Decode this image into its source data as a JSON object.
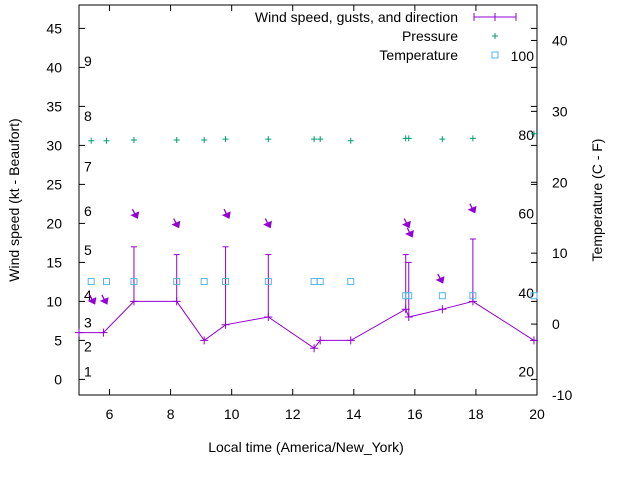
{
  "chart_data": {
    "type": "line",
    "title": "",
    "xlabel": "Local time (America/New_York)",
    "ylabel": "Wind speed (kt - Beaufort)",
    "y2label": "Temperature (C - F)",
    "xlim": [
      5,
      20
    ],
    "ylim": [
      -2,
      48
    ],
    "y2lim": [
      -10,
      45
    ],
    "x_ticks": [
      6,
      8,
      10,
      12,
      14,
      16,
      18,
      20
    ],
    "y_ticks": [
      0,
      5,
      10,
      15,
      20,
      25,
      30,
      35,
      40,
      45
    ],
    "y2_ticks": [
      -10,
      0,
      10,
      20,
      30,
      40
    ],
    "fahrenheit_labels": [
      {
        "c": -6.7,
        "label": "20"
      },
      {
        "c": 4.4,
        "label": "40"
      },
      {
        "c": 15.6,
        "label": "60"
      },
      {
        "c": 26.7,
        "label": "80"
      },
      {
        "c": 37.8,
        "label": "100"
      }
    ],
    "beaufort_labels": [
      {
        "kt": 1,
        "label": "1"
      },
      {
        "kt": 4.2,
        "label": "2"
      },
      {
        "kt": 7.3,
        "label": "3"
      },
      {
        "kt": 10.8,
        "label": "4"
      },
      {
        "kt": 16.6,
        "label": "5"
      },
      {
        "kt": 21.6,
        "label": "6"
      },
      {
        "kt": 27.3,
        "label": "7"
      },
      {
        "kt": 33.8,
        "label": "8"
      },
      {
        "kt": 40.8,
        "label": "9"
      }
    ],
    "legend_position": "top-right",
    "grid": false,
    "colors": {
      "wind": "#9400d3",
      "pressure": "#009e73",
      "temperature": "#56b4e9"
    },
    "series": [
      {
        "name": "Wind speed, gusts, and direction",
        "x": [
          5.0,
          5.8,
          6.8,
          8.2,
          9.1,
          9.8,
          11.2,
          12.7,
          12.9,
          13.9,
          15.7,
          15.8,
          16.9,
          17.9,
          19.9
        ],
        "values": [
          6,
          6,
          10,
          10,
          5,
          7,
          8,
          4,
          5,
          5,
          9,
          8,
          9,
          10,
          5
        ],
        "gusts": [
          {
            "x": 6.8,
            "to": 17
          },
          {
            "x": 8.2,
            "to": 16
          },
          {
            "x": 9.8,
            "to": 17
          },
          {
            "x": 11.2,
            "to": 16
          },
          {
            "x": 15.7,
            "to": 16
          },
          {
            "x": 15.8,
            "to": 15
          },
          {
            "x": 17.9,
            "to": 18
          }
        ],
        "direction_arrows": [
          {
            "x": 5.45,
            "y": 9.8
          },
          {
            "x": 5.85,
            "y": 9.8
          },
          {
            "x": 6.85,
            "y": 20.8
          },
          {
            "x": 8.2,
            "y": 19.6
          },
          {
            "x": 9.85,
            "y": 20.8
          },
          {
            "x": 11.2,
            "y": 19.6
          },
          {
            "x": 15.75,
            "y": 19.6
          },
          {
            "x": 15.85,
            "y": 18.4
          },
          {
            "x": 16.85,
            "y": 12.5
          },
          {
            "x": 17.9,
            "y": 21.5
          }
        ]
      },
      {
        "name": "Pressure",
        "x": [
          5.4,
          5.9,
          6.8,
          8.2,
          9.1,
          9.8,
          11.2,
          12.7,
          12.9,
          13.9,
          15.7,
          15.8,
          16.9,
          17.9,
          19.9
        ],
        "values": [
          30.6,
          30.6,
          30.7,
          30.7,
          30.7,
          30.8,
          30.8,
          30.8,
          30.8,
          30.6,
          30.9,
          30.9,
          30.8,
          30.9,
          31.5
        ]
      },
      {
        "name": "Temperature",
        "x": [
          5.4,
          5.9,
          6.8,
          8.2,
          9.1,
          9.8,
          11.2,
          12.7,
          12.9,
          13.9,
          15.7,
          15.8,
          16.9,
          17.9,
          19.9
        ],
        "values": [
          6,
          6,
          6,
          6,
          6,
          6,
          6,
          6,
          6,
          6,
          4,
          4,
          4,
          4,
          4
        ]
      }
    ]
  }
}
